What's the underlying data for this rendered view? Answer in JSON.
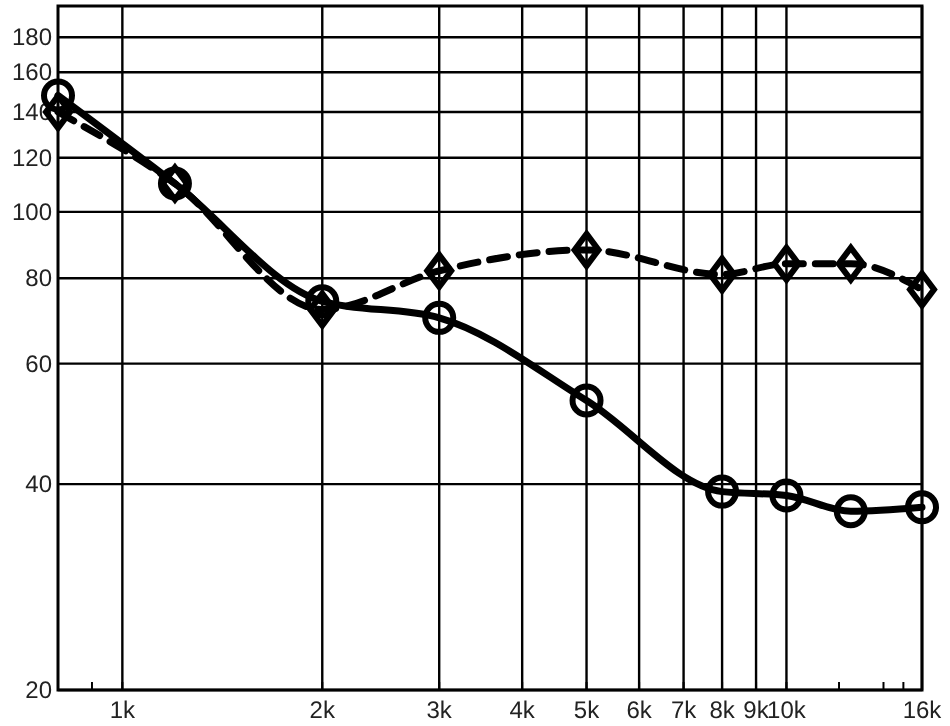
{
  "chart_data": {
    "type": "line",
    "log": "xy",
    "grid": true,
    "xlim": [
      800,
      16000
    ],
    "ylim": [
      20,
      200
    ],
    "xticks": [
      {
        "value": 900,
        "label": null
      },
      {
        "value": 1000,
        "label": "1k"
      },
      {
        "value": 2000,
        "label": "2k"
      },
      {
        "value": 3000,
        "label": "3k"
      },
      {
        "value": 4000,
        "label": "4k"
      },
      {
        "value": 5000,
        "label": "5k"
      },
      {
        "value": 6000,
        "label": "6k"
      },
      {
        "value": 7000,
        "label": "7k"
      },
      {
        "value": 8000,
        "label": "8k"
      },
      {
        "value": 9000,
        "label": "9k"
      },
      {
        "value": 10000,
        "label": "10k"
      },
      {
        "value": 12000,
        "label": null
      },
      {
        "value": 14000,
        "label": null
      },
      {
        "value": 15000,
        "label": null
      },
      {
        "value": 16000,
        "label": "16k"
      }
    ],
    "yticks": [
      20,
      40,
      60,
      80,
      100,
      120,
      140,
      160,
      180
    ],
    "x": [
      800,
      1200,
      2000,
      3000,
      5000,
      8000,
      10000,
      12500,
      16000
    ],
    "series": [
      {
        "color": "#000000",
        "marker": "circle",
        "line_style": "solid",
        "values": [
          148,
          110,
          74,
          70,
          53,
          39,
          38.5,
          36.5,
          37
        ]
      },
      {
        "color": "#000000",
        "marker": "diamond",
        "line_style": "dashed",
        "values": [
          140,
          110,
          72,
          82,
          88,
          81,
          84,
          84,
          77
        ]
      }
    ]
  }
}
